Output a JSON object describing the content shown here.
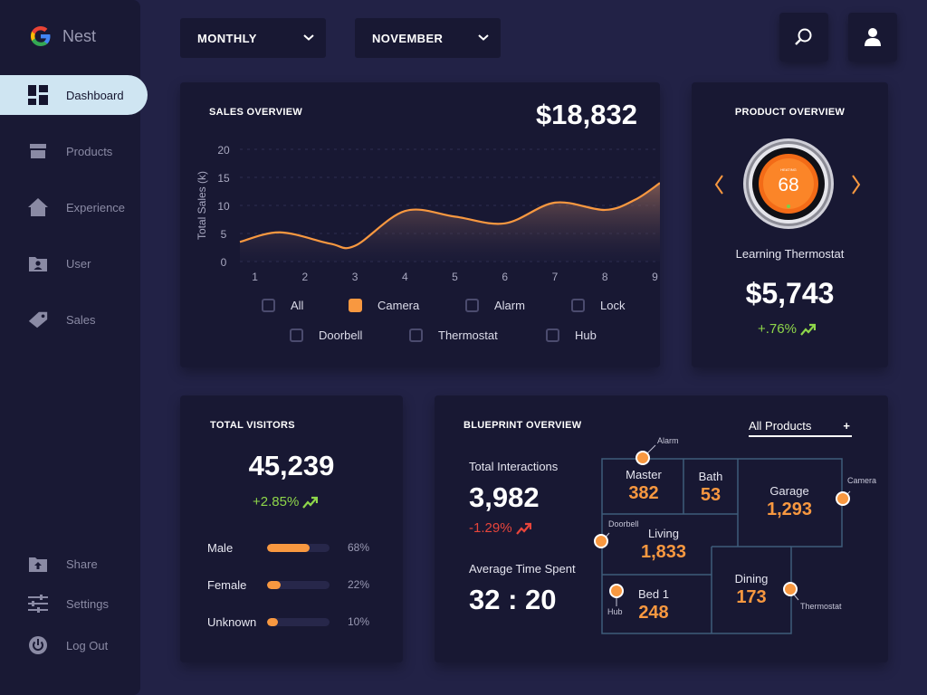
{
  "app": {
    "brand": "Nest"
  },
  "nav": {
    "items": [
      {
        "label": "Dashboard",
        "icon": "dashboard-icon",
        "active": true
      },
      {
        "label": "Products",
        "icon": "products-icon"
      },
      {
        "label": "Experience",
        "icon": "home-icon"
      },
      {
        "label": "User",
        "icon": "user-folder-icon"
      },
      {
        "label": "Sales",
        "icon": "tag-icon"
      }
    ],
    "bottom": [
      {
        "label": "Share",
        "icon": "share-folder-icon"
      },
      {
        "label": "Settings",
        "icon": "settings-sliders-icon"
      },
      {
        "label": "Log Out",
        "icon": "power-icon"
      }
    ]
  },
  "filters": {
    "period": "MONTHLY",
    "month": "NOVEMBER"
  },
  "sales": {
    "title": "SALES OVERVIEW",
    "total": "$18,832",
    "legend": [
      {
        "label": "All",
        "checked": false
      },
      {
        "label": "Camera",
        "checked": true
      },
      {
        "label": "Alarm",
        "checked": false
      },
      {
        "label": "Lock",
        "checked": false
      },
      {
        "label": "Doorbell",
        "checked": false
      },
      {
        "label": "Thermostat",
        "checked": false
      },
      {
        "label": "Hub",
        "checked": false
      }
    ]
  },
  "chart_data": {
    "type": "area",
    "title": "",
    "xlabel": "",
    "ylabel": "Total Sales (k)",
    "x": [
      1,
      2,
      3,
      4,
      5,
      6,
      7,
      8,
      9
    ],
    "xlim": [
      0.7,
      9.1
    ],
    "ylim": [
      0,
      20
    ],
    "yticks": [
      0,
      5,
      10,
      15,
      20
    ],
    "series": [
      {
        "name": "Camera",
        "x": [
          0.7,
          1.5,
          2.5,
          3.0,
          4.0,
          5.0,
          6.0,
          7.0,
          8.0,
          8.6,
          9.1
        ],
        "values": [
          3.5,
          5.2,
          3.2,
          2.8,
          9.0,
          8.0,
          6.8,
          10.5,
          9.2,
          11.0,
          14.0
        ]
      }
    ],
    "color": "#f89840",
    "grid": true
  },
  "product": {
    "title": "PRODUCT OVERVIEW",
    "device_reading": "68",
    "device_caption": "HEATING",
    "name": "Learning Thermostat",
    "price": "$5,743",
    "change": "+.76%",
    "prev_icon": "chevron-left-icon",
    "next_icon": "chevron-right-icon"
  },
  "visitors": {
    "title": "TOTAL VISITORS",
    "total": "45,239",
    "change": "+2.85%",
    "rows": [
      {
        "label": "Male",
        "pct": "68%",
        "value": 0.68
      },
      {
        "label": "Female",
        "pct": "22%",
        "value": 0.22
      },
      {
        "label": "Unknown",
        "pct": "10%",
        "value": 0.1
      }
    ]
  },
  "blueprint": {
    "title": "BLUEPRINT OVERVIEW",
    "filter": "All Products",
    "interactions_label": "Total Interactions",
    "interactions": "3,982",
    "interactions_change": "-1.29%",
    "time_label": "Average Time Spent",
    "time": "32 : 20",
    "rooms": [
      {
        "name": "Master",
        "value": "382"
      },
      {
        "name": "Bath",
        "value": "53"
      },
      {
        "name": "Garage",
        "value": "1,293"
      },
      {
        "name": "Living",
        "value": "1,833"
      },
      {
        "name": "Dining",
        "value": "173"
      },
      {
        "name": "Bed 1",
        "value": "248"
      }
    ],
    "sensors": [
      "Alarm",
      "Camera",
      "Doorbell",
      "Thermostat",
      "Hub"
    ]
  },
  "colors": {
    "accent": "#f89840",
    "background": "#222246",
    "card": "#181833",
    "positive": "#8ed64a",
    "negative": "#e8453b",
    "active_nav": "#cfe5f2"
  }
}
